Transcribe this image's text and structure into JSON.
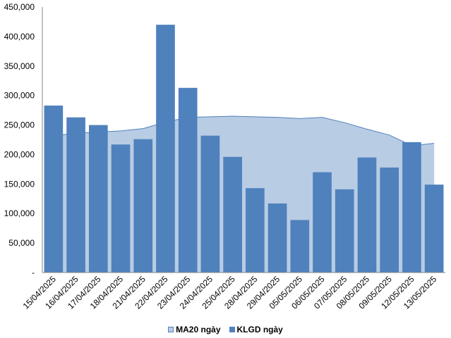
{
  "chart_data": {
    "type": "bar",
    "categories": [
      "15/04/2025",
      "16/04/2025",
      "17/04/2025",
      "18/04/2025",
      "21/04/2025",
      "22/04/2025",
      "23/04/2025",
      "24/04/2025",
      "25/04/2025",
      "28/04/2025",
      "29/04/2025",
      "05/05/2025",
      "06/05/2025",
      "07/05/2025",
      "08/05/2025",
      "09/05/2025",
      "12/05/2025",
      "13/05/2025"
    ],
    "series": [
      {
        "name": "MA20 ngày",
        "type": "area",
        "color": "#b8cce4",
        "edge_color": "#4f81bd",
        "values": [
          232000,
          236000,
          238000,
          240000,
          244000,
          255000,
          263000,
          264000,
          265000,
          264000,
          263000,
          261000,
          263000,
          254000,
          243000,
          233000,
          215000,
          219000
        ]
      },
      {
        "name": "KLGD ngày",
        "type": "bar",
        "color": "#4f81bd",
        "values": [
          283000,
          263000,
          250000,
          217000,
          226000,
          420000,
          313000,
          232000,
          196000,
          143000,
          117000,
          89000,
          170000,
          141000,
          195000,
          178000,
          221000,
          149000
        ]
      }
    ],
    "y_ticks": [
      "-",
      "50,000",
      "100,000",
      "150,000",
      "200,000",
      "250,000",
      "300,000",
      "350,000",
      "400,000",
      "450,000"
    ],
    "ylim": [
      0,
      450000
    ],
    "grid": false,
    "legend_position": "bottom"
  },
  "legend": {
    "items": [
      "MA20 ngày",
      "KLGD ngày"
    ]
  }
}
